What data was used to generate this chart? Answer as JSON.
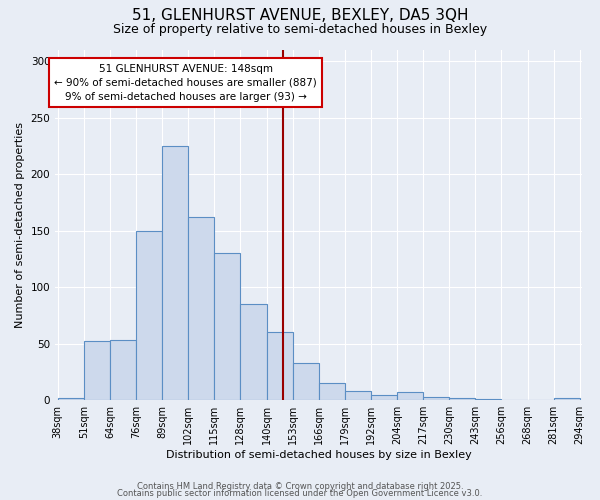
{
  "title_line1": "51, GLENHURST AVENUE, BEXLEY, DA5 3QH",
  "title_line2": "Size of property relative to semi-detached houses in Bexley",
  "xlabel": "Distribution of semi-detached houses by size in Bexley",
  "ylabel": "Number of semi-detached properties",
  "bin_labels": [
    "38sqm",
    "51sqm",
    "64sqm",
    "76sqm",
    "89sqm",
    "102sqm",
    "115sqm",
    "128sqm",
    "140sqm",
    "153sqm",
    "166sqm",
    "179sqm",
    "192sqm",
    "204sqm",
    "217sqm",
    "230sqm",
    "243sqm",
    "256sqm",
    "268sqm",
    "281sqm",
    "294sqm"
  ],
  "bar_heights": [
    2,
    52,
    53,
    150,
    225,
    162,
    130,
    85,
    60,
    33,
    15,
    8,
    5,
    7,
    3,
    2,
    1,
    0,
    0,
    2
  ],
  "n_bars": 20,
  "property_size_idx": 8.7,
  "annotation_title": "51 GLENHURST AVENUE: 148sqm",
  "annotation_line2": "← 90% of semi-detached houses are smaller (887)",
  "annotation_line3": "9% of semi-detached houses are larger (93) →",
  "bar_color": "#cdd9ec",
  "bar_edge_color": "#5b8ec4",
  "vline_color": "#990000",
  "background_color": "#e8edf5",
  "annotation_box_edge": "#cc0000",
  "footer_line1": "Contains HM Land Registry data © Crown copyright and database right 2025.",
  "footer_line2": "Contains public sector information licensed under the Open Government Licence v3.0.",
  "ylim": [
    0,
    310
  ],
  "yticks": [
    0,
    50,
    100,
    150,
    200,
    250,
    300
  ],
  "grid_color": "#ffffff",
  "title_fontsize": 11,
  "subtitle_fontsize": 9,
  "axis_label_fontsize": 8,
  "tick_fontsize": 7,
  "annotation_fontsize": 7.5,
  "footer_fontsize": 6
}
